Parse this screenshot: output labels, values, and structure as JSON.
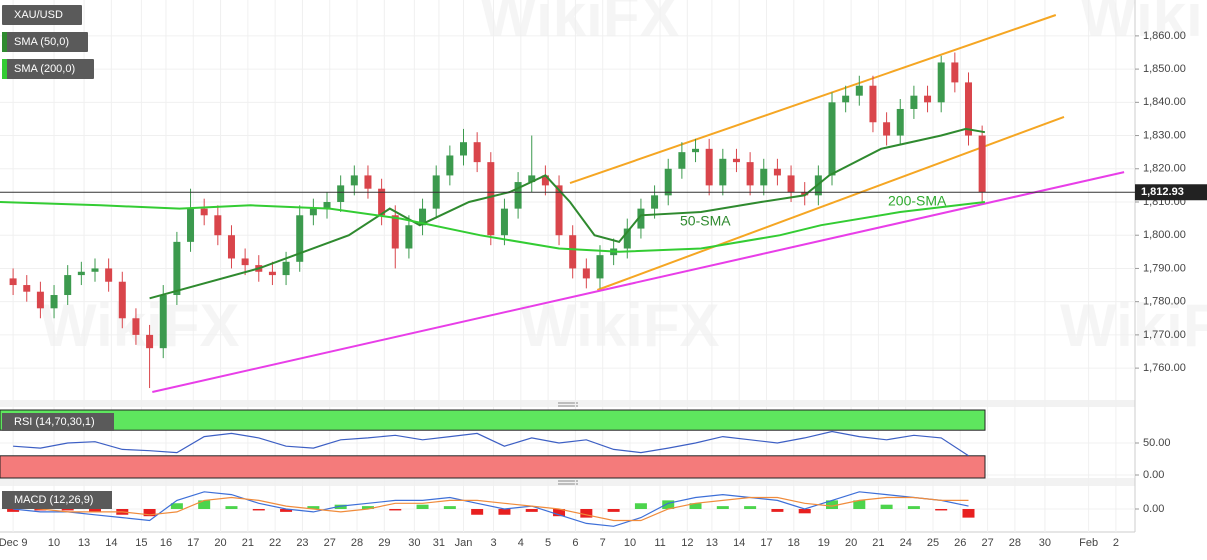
{
  "chart_data": [
    {
      "type": "candlestick",
      "name": "XAU/USD",
      "watermark": "WikiFX",
      "up_color": "#3c9a4e",
      "down_color": "#d9454b",
      "x": [
        0,
        0.5,
        1,
        1.5,
        2,
        2.5,
        3,
        3.5,
        4,
        4.5,
        5,
        5.5,
        6,
        6.5,
        7,
        7.5,
        8,
        8.5,
        9,
        9.5,
        10,
        10.5,
        11,
        11.5,
        12,
        12.5,
        13,
        13.5,
        14,
        14.5,
        15,
        15.5,
        16,
        16.5,
        17,
        17.5,
        18,
        18.5,
        19,
        19.5,
        20,
        20.5,
        21,
        21.5,
        22,
        22.5,
        23,
        23.5,
        24,
        24.5,
        25,
        25.5,
        26,
        26.5,
        27,
        27.5,
        28,
        28.5,
        29,
        29.5,
        30,
        30.5,
        31,
        31.5,
        32,
        32.5,
        33,
        33.5,
        34,
        34.5,
        35,
        35.5
      ],
      "open": [
        1787,
        1785,
        1783,
        1778,
        1782,
        1788,
        1789,
        1790,
        1786,
        1775,
        1770,
        1766,
        1782,
        1798,
        1808,
        1806,
        1800,
        1793,
        1791,
        1789,
        1788,
        1792,
        1806,
        1808,
        1810,
        1815,
        1818,
        1814,
        1806,
        1796,
        1803,
        1808,
        1818,
        1824,
        1828,
        1822,
        1800,
        1808,
        1816,
        1818,
        1815,
        1800,
        1790,
        1787,
        1794,
        1796,
        1802,
        1808,
        1812,
        1820,
        1825,
        1826,
        1815,
        1823,
        1822,
        1815,
        1820,
        1818,
        1813,
        1812,
        1818,
        1840,
        1842,
        1845,
        1834,
        1830,
        1838,
        1842,
        1840,
        1852,
        1846,
        1830
      ],
      "high": [
        1790,
        1788,
        1786,
        1785,
        1791,
        1792,
        1793,
        1793,
        1789,
        1778,
        1773,
        1785,
        1801,
        1814,
        1811,
        1809,
        1803,
        1796,
        1794,
        1792,
        1795,
        1809,
        1811,
        1813,
        1818,
        1821,
        1821,
        1817,
        1809,
        1806,
        1811,
        1821,
        1827,
        1832,
        1831,
        1825,
        1811,
        1819,
        1830,
        1821,
        1818,
        1803,
        1793,
        1797,
        1799,
        1805,
        1811,
        1815,
        1823,
        1828,
        1829,
        1829,
        1826,
        1826,
        1825,
        1823,
        1823,
        1821,
        1816,
        1821,
        1843,
        1845,
        1848,
        1848,
        1837,
        1841,
        1845,
        1845,
        1854,
        1855,
        1849,
        1833
      ],
      "low": [
        1782,
        1780,
        1775,
        1775,
        1779,
        1785,
        1786,
        1783,
        1772,
        1767,
        1754,
        1763,
        1779,
        1795,
        1803,
        1797,
        1790,
        1788,
        1786,
        1785,
        1785,
        1789,
        1803,
        1805,
        1807,
        1812,
        1811,
        1803,
        1790,
        1793,
        1800,
        1805,
        1815,
        1821,
        1819,
        1797,
        1797,
        1805,
        1813,
        1812,
        1797,
        1787,
        1784,
        1784,
        1791,
        1793,
        1799,
        1805,
        1809,
        1817,
        1822,
        1812,
        1812,
        1819,
        1812,
        1812,
        1815,
        1810,
        1809,
        1809,
        1815,
        1837,
        1839,
        1831,
        1827,
        1827,
        1835,
        1837,
        1837,
        1843,
        1827,
        1810
      ],
      "close": [
        1785,
        1783,
        1778,
        1782,
        1788,
        1789,
        1790,
        1786,
        1775,
        1770,
        1766,
        1782,
        1798,
        1808,
        1806,
        1800,
        1793,
        1791,
        1789,
        1788,
        1792,
        1806,
        1808,
        1810,
        1815,
        1818,
        1814,
        1806,
        1796,
        1803,
        1808,
        1818,
        1824,
        1828,
        1822,
        1800,
        1808,
        1816,
        1818,
        1815,
        1800,
        1790,
        1787,
        1794,
        1796,
        1802,
        1808,
        1812,
        1820,
        1825,
        1826,
        1815,
        1823,
        1822,
        1815,
        1820,
        1818,
        1813,
        1812,
        1818,
        1840,
        1842,
        1845,
        1834,
        1830,
        1838,
        1842,
        1840,
        1852,
        1846,
        1830,
        1813
      ],
      "lines": [
        {
          "name": "SMA (50,0)",
          "color": "#2f8a2f",
          "x": [
            5.0,
            9.0,
            12.3,
            13.8,
            14.9,
            16.7,
            18.2,
            19.5,
            20.4,
            21.3,
            22.2,
            23.0,
            25.2,
            27.4,
            29.0,
            29.9,
            31.8,
            34.0,
            34.9,
            35.6
          ],
          "values": [
            1781,
            1790,
            1800,
            1808,
            1803,
            1810,
            1813,
            1818,
            1810,
            1800,
            1798,
            1806,
            1807,
            1810,
            1812,
            1818,
            1826,
            1830,
            1832,
            1831
          ]
        },
        {
          "name": "SMA (200,0)",
          "color": "#33cc33",
          "x": [
            -0.48,
            3.2,
            6.1,
            8.7,
            11.6,
            14.2,
            17.1,
            20.0,
            22.2,
            25.2,
            28.1,
            29.6,
            32.5,
            35.6
          ],
          "values": [
            1810,
            1809,
            1808,
            1809,
            1808,
            1805,
            1800,
            1796,
            1795,
            1796,
            1800,
            1803,
            1807,
            1810
          ]
        }
      ],
      "trendlines": [
        {
          "color": "#f5a623",
          "x": [
            20.4,
            38.2
          ],
          "values": [
            1815.7,
            1866.3
          ]
        },
        {
          "color": "#f5a623",
          "x": [
            21.4,
            38.5
          ],
          "values": [
            1783.5,
            1835.6
          ]
        },
        {
          "color": "#e83ee8",
          "x": [
            5.1,
            40.7
          ],
          "values": [
            1752.8,
            1819.0
          ]
        }
      ],
      "annotations": [
        {
          "text": "50-SMA",
          "color": "#2f8a2f"
        },
        {
          "text": "200-SMA",
          "color": "#2faa2f"
        }
      ],
      "last_price": {
        "value": 1812.93,
        "label": "1,812.93"
      },
      "xlim": [
        -0.48,
        41.1
      ],
      "xticks": [
        {
          "value": 0,
          "label": "Dec 9"
        },
        {
          "value": 1.5,
          "label": "10"
        },
        {
          "value": 2.6,
          "label": "13"
        },
        {
          "value": 3.6,
          "label": "14"
        },
        {
          "value": 4.7,
          "label": "15"
        },
        {
          "value": 5.6,
          "label": "16"
        },
        {
          "value": 6.6,
          "label": "17"
        },
        {
          "value": 7.6,
          "label": "20"
        },
        {
          "value": 8.6,
          "label": "21"
        },
        {
          "value": 9.6,
          "label": "22"
        },
        {
          "value": 10.6,
          "label": "23"
        },
        {
          "value": 11.6,
          "label": "27"
        },
        {
          "value": 12.6,
          "label": "28"
        },
        {
          "value": 13.6,
          "label": "29"
        },
        {
          "value": 14.7,
          "label": "30"
        },
        {
          "value": 15.6,
          "label": "31"
        },
        {
          "value": 16.5,
          "label": "Jan"
        },
        {
          "value": 17.6,
          "label": "3"
        },
        {
          "value": 18.6,
          "label": "4"
        },
        {
          "value": 19.6,
          "label": "5"
        },
        {
          "value": 20.6,
          "label": "6"
        },
        {
          "value": 21.6,
          "label": "7"
        },
        {
          "value": 22.6,
          "label": "10"
        },
        {
          "value": 23.7,
          "label": "11"
        },
        {
          "value": 24.7,
          "label": "12"
        },
        {
          "value": 25.6,
          "label": "13"
        },
        {
          "value": 26.6,
          "label": "14"
        },
        {
          "value": 27.6,
          "label": "17"
        },
        {
          "value": 28.6,
          "label": "18"
        },
        {
          "value": 29.7,
          "label": "19"
        },
        {
          "value": 30.7,
          "label": "20"
        },
        {
          "value": 31.7,
          "label": "21"
        },
        {
          "value": 32.7,
          "label": "24"
        },
        {
          "value": 33.7,
          "label": "25"
        },
        {
          "value": 34.7,
          "label": "26"
        },
        {
          "value": 35.7,
          "label": "27"
        },
        {
          "value": 36.7,
          "label": "28"
        },
        {
          "value": 37.8,
          "label": "30"
        },
        {
          "value": 39.4,
          "label": "Feb"
        },
        {
          "value": 40.4,
          "label": "2"
        }
      ],
      "ylim": [
        1750.4,
        1870.8
      ],
      "yticks": [
        {
          "value": 1760,
          "label": "1,760.00"
        },
        {
          "value": 1770,
          "label": "1,770.00"
        },
        {
          "value": 1780,
          "label": "1,780.00"
        },
        {
          "value": 1790,
          "label": "1,790.00"
        },
        {
          "value": 1800,
          "label": "1,800.00"
        },
        {
          "value": 1810,
          "label": "1,810.00"
        },
        {
          "value": 1820,
          "label": "1,820.00"
        },
        {
          "value": 1830,
          "label": "1,830.00"
        },
        {
          "value": 1840,
          "label": "1,840.00"
        },
        {
          "value": 1850,
          "label": "1,850.00"
        },
        {
          "value": 1860,
          "label": "1,860.00"
        }
      ]
    },
    {
      "type": "rsi",
      "title": "RSI (14,70,30,1)",
      "color": "#3d5fc4",
      "overbought": 70,
      "oversold": 30,
      "band_colors": [
        "#5ee65e",
        "#f47b7b"
      ],
      "x": [
        0,
        1,
        2,
        3,
        4,
        5,
        6,
        7,
        8,
        9,
        10,
        11,
        12,
        13,
        14,
        15,
        16,
        17,
        18,
        19,
        20,
        21,
        22,
        23,
        24,
        25,
        26,
        27,
        28,
        29,
        30,
        31,
        32,
        33,
        34,
        35
      ],
      "values": [
        45,
        42,
        50,
        52,
        40,
        38,
        35,
        60,
        65,
        58,
        45,
        42,
        55,
        58,
        62,
        55,
        60,
        65,
        45,
        58,
        50,
        55,
        40,
        35,
        42,
        50,
        60,
        55,
        50,
        58,
        68,
        60,
        55,
        62,
        58,
        30
      ],
      "ylim": [
        -4.7,
        104.7
      ],
      "yticks": [
        {
          "value": 50,
          "label": "50.00"
        },
        {
          "value": 0,
          "label": "0.00"
        }
      ]
    },
    {
      "type": "macd",
      "title": "MACD (12,26,9)",
      "up_color": "#4cd44c",
      "down_color": "#e82020",
      "x": [
        0,
        1,
        2,
        3,
        4,
        5,
        6,
        7,
        8,
        9,
        10,
        11,
        12,
        13,
        14,
        15,
        16,
        17,
        18,
        19,
        20,
        21,
        22,
        23,
        24,
        25,
        26,
        27,
        28,
        29,
        30,
        31,
        32,
        33,
        34,
        35
      ],
      "histogram": [
        -1,
        -0.5,
        -0.5,
        -1,
        -2,
        -2.5,
        2,
        3,
        1,
        -0.5,
        -1,
        1,
        1.5,
        1,
        -0.5,
        1.5,
        1,
        -2,
        -2,
        -1,
        -2.5,
        -3,
        -1,
        2,
        3,
        2,
        1,
        1,
        -1,
        -1.5,
        3,
        3,
        1.5,
        1,
        -0.5,
        -3
      ],
      "macd": {
        "color": "#3d6fd8",
        "values": [
          0,
          -1,
          -1,
          -2,
          -3,
          -4,
          3,
          6,
          5,
          2,
          0,
          -1,
          1,
          2,
          3,
          3,
          4,
          2,
          0,
          1,
          -2,
          -5,
          -6,
          -3,
          2,
          4,
          5,
          4,
          3,
          0,
          3,
          6,
          5,
          4,
          3,
          1
        ]
      },
      "signal": {
        "color": "#f08c3c",
        "values": [
          1,
          0,
          -1,
          -1,
          -1,
          -2,
          -1,
          3,
          4,
          3,
          1,
          0,
          -1,
          0,
          2,
          2,
          3,
          3,
          2,
          1,
          0,
          -2,
          -4,
          -4,
          0,
          2,
          3,
          4,
          4,
          2,
          1,
          3,
          4,
          4,
          3,
          3
        ]
      },
      "ylim": [
        -8,
        8
      ],
      "yticks": [
        {
          "value": 0,
          "label": "0.00"
        }
      ]
    }
  ]
}
